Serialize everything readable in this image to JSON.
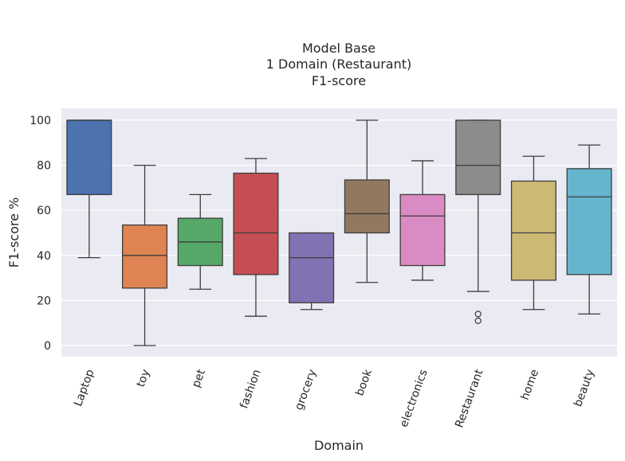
{
  "chart_data": {
    "type": "box",
    "title_lines": [
      "Model Base",
      "1 Domain (Restaurant)",
      "F1-score"
    ],
    "xlabel": "Domain",
    "ylabel": "F1-score %",
    "ylim": [
      -5,
      105
    ],
    "yticks": [
      0,
      20,
      40,
      60,
      80,
      100
    ],
    "grid": true,
    "categories": [
      "Laptop",
      "toy",
      "pet",
      "fashion",
      "grocery",
      "book",
      "electronics",
      "Restaurant",
      "home",
      "beauty"
    ],
    "boxes": [
      {
        "category": "Laptop",
        "whisker_low": 39,
        "q1": 67,
        "median": 100,
        "q3": 100,
        "whisker_high": 100,
        "outliers": [],
        "color": "#4c72b0"
      },
      {
        "category": "toy",
        "whisker_low": 0,
        "q1": 25.5,
        "median": 40,
        "q3": 53.5,
        "whisker_high": 80,
        "outliers": [],
        "color": "#dd8452"
      },
      {
        "category": "pet",
        "whisker_low": 25,
        "q1": 35.5,
        "median": 46,
        "q3": 56.5,
        "whisker_high": 67,
        "outliers": [],
        "color": "#55a868"
      },
      {
        "category": "fashion",
        "whisker_low": 13,
        "q1": 31.5,
        "median": 50,
        "q3": 76.5,
        "whisker_high": 83,
        "outliers": [],
        "color": "#c44e52"
      },
      {
        "category": "grocery",
        "whisker_low": 16,
        "q1": 19,
        "median": 39,
        "q3": 50,
        "whisker_high": 50,
        "outliers": [],
        "color": "#8172b3"
      },
      {
        "category": "book",
        "whisker_low": 28,
        "q1": 50,
        "median": 58.5,
        "q3": 73.5,
        "whisker_high": 100,
        "outliers": [],
        "color": "#937860"
      },
      {
        "category": "electronics",
        "whisker_low": 29,
        "q1": 35.5,
        "median": 57.5,
        "q3": 67,
        "whisker_high": 82,
        "outliers": [],
        "color": "#da8bc3"
      },
      {
        "category": "Restaurant",
        "whisker_low": 24,
        "q1": 67,
        "median": 80,
        "q3": 100,
        "whisker_high": 100,
        "outliers": [
          14,
          11
        ],
        "color": "#8c8c8c"
      },
      {
        "category": "home",
        "whisker_low": 16,
        "q1": 29,
        "median": 50,
        "q3": 73,
        "whisker_high": 84,
        "outliers": [],
        "color": "#ccb974"
      },
      {
        "category": "beauty",
        "whisker_low": 14,
        "q1": 31.5,
        "median": 66,
        "q3": 78.5,
        "whisker_high": 89,
        "outliers": [],
        "color": "#64b5cd"
      }
    ]
  }
}
